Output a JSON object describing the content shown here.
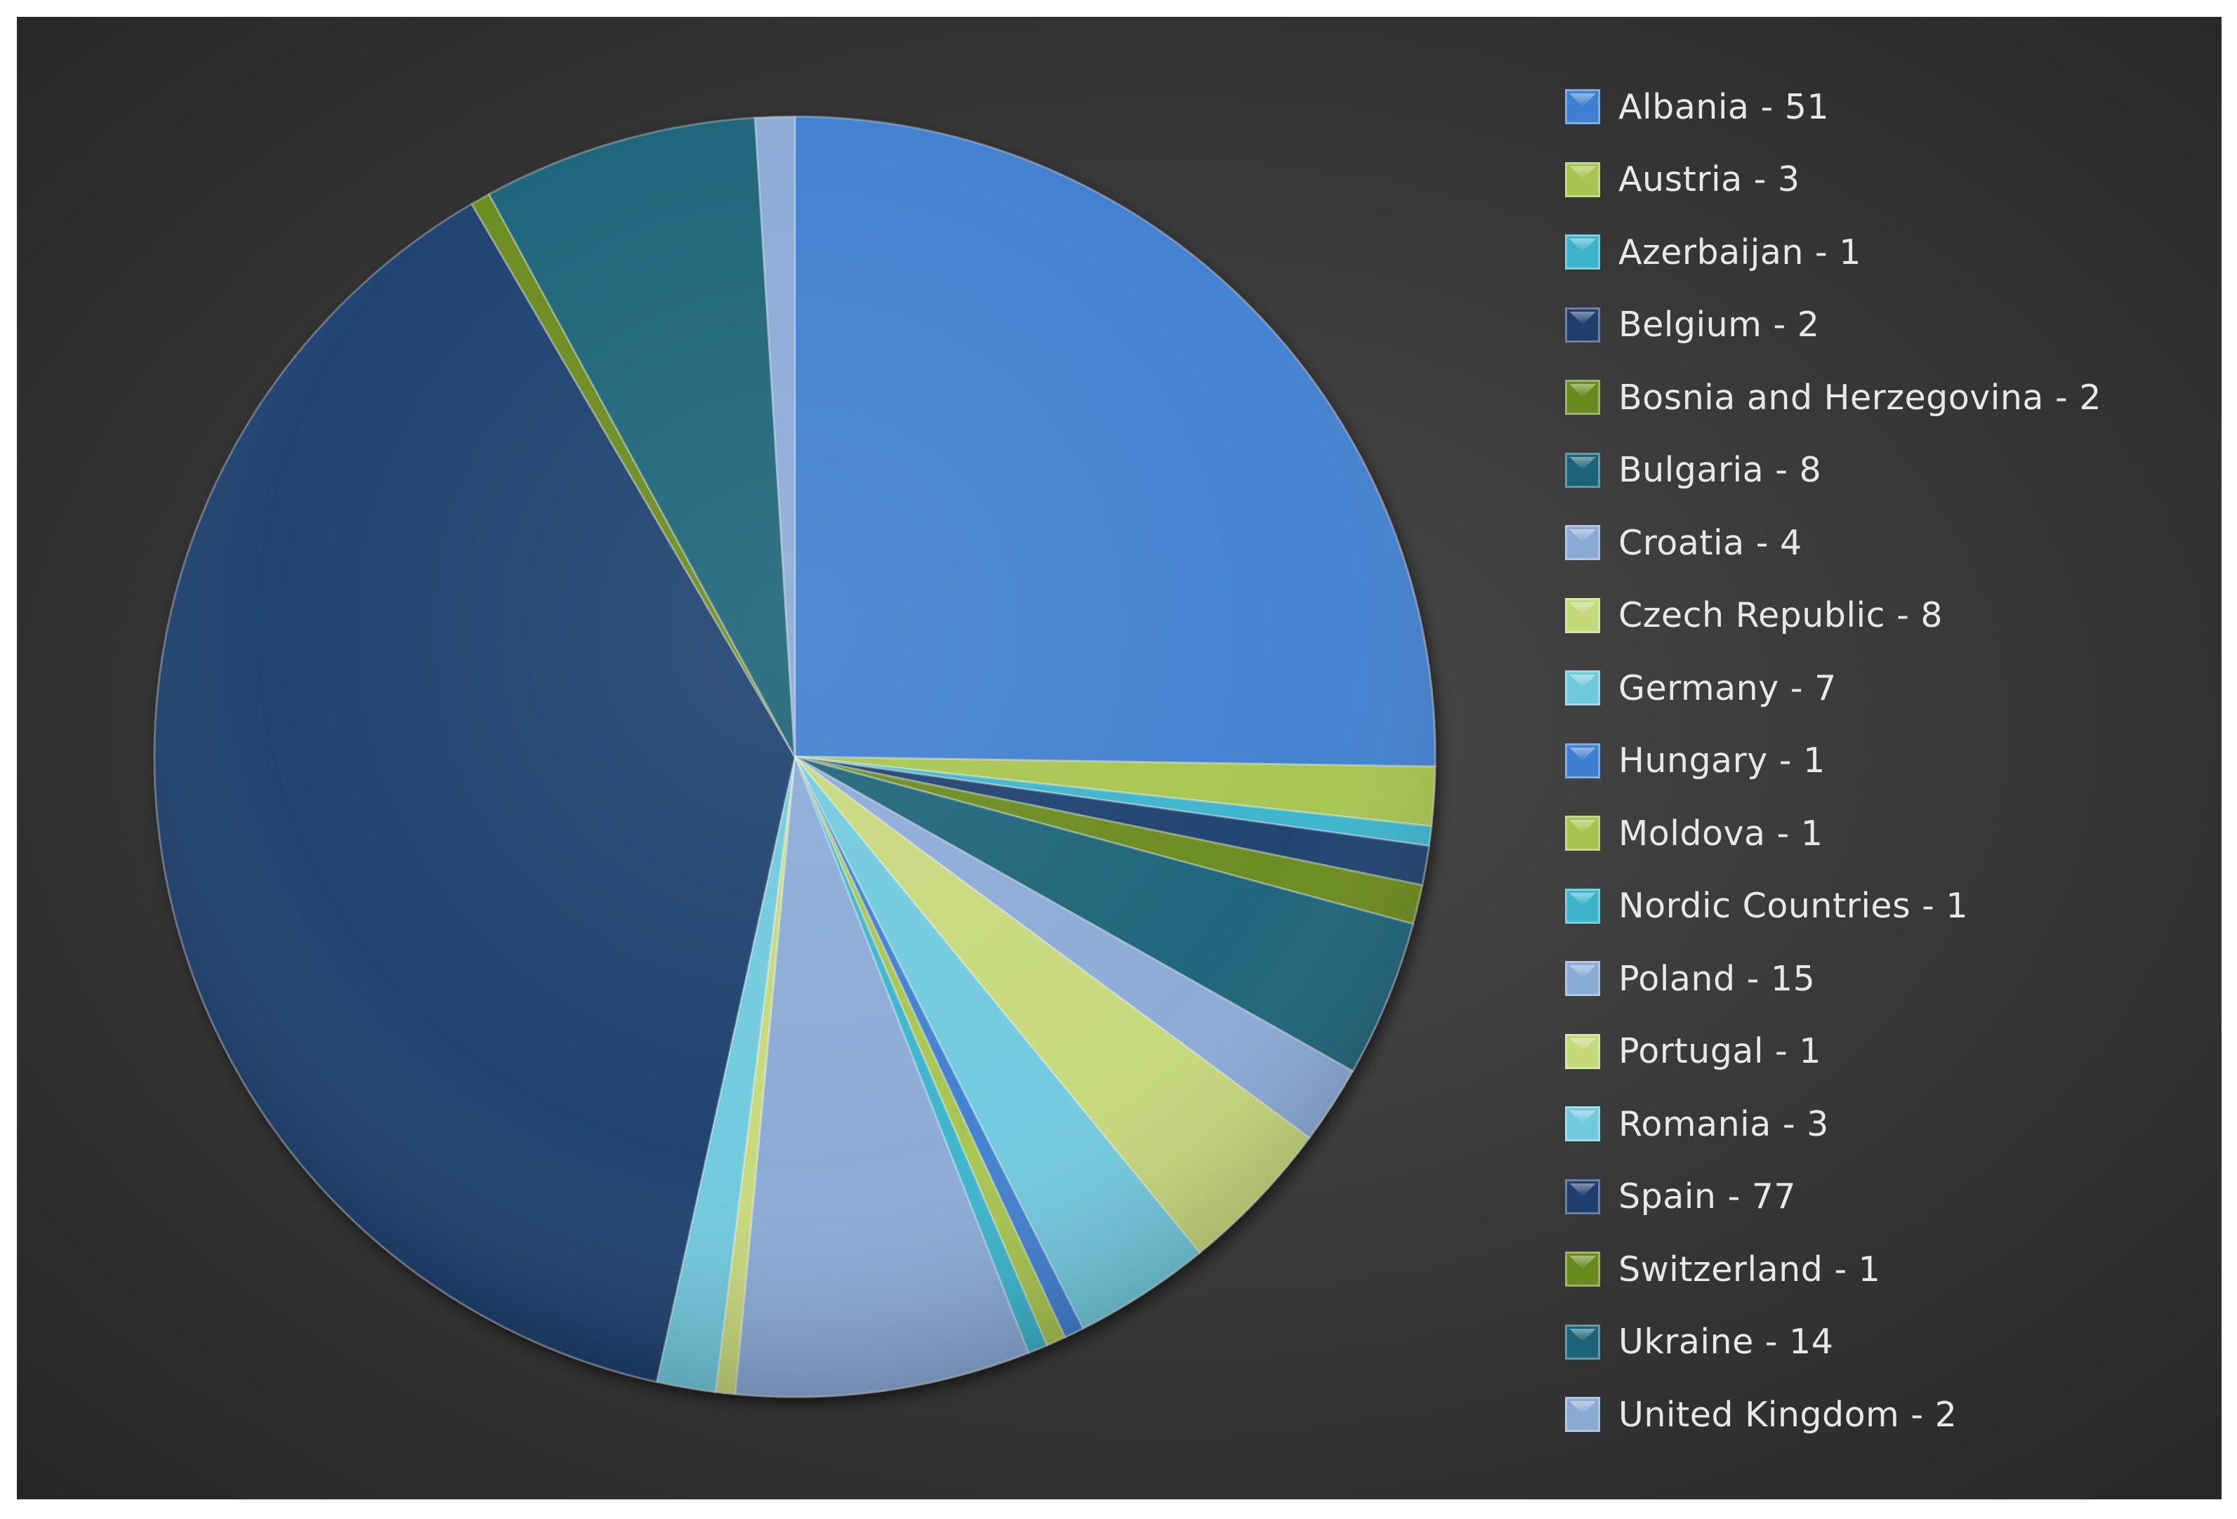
{
  "colors": {
    "blue": "#3f7fcf",
    "yellowgreen": "#a7c44e",
    "cyan": "#3bb4cc",
    "navy": "#1e3f6e",
    "olive": "#6b8a1e",
    "teal": "#1a6378",
    "lightblue": "#8aaad6",
    "lightgreen": "#c6d87a",
    "lightcyan": "#6fc9dd"
  },
  "chart_data": {
    "type": "pie",
    "title": "",
    "start_angle_deg": 0,
    "direction": "clockwise",
    "legend_position": "right",
    "slices": [
      {
        "category": "Albania",
        "value": 51,
        "label": "Albania - 51",
        "color": "#3f7fcf"
      },
      {
        "category": "Austria",
        "value": 3,
        "label": "Austria - 3",
        "color": "#a7c44e"
      },
      {
        "category": "Azerbaijan",
        "value": 1,
        "label": "Azerbaijan - 1",
        "color": "#3bb4cc"
      },
      {
        "category": "Belgium",
        "value": 2,
        "label": "Belgium - 2",
        "color": "#1e3f6e"
      },
      {
        "category": "Bosnia and Herzegovina",
        "value": 2,
        "label": "Bosnia and Herzegovina - 2",
        "color": "#6b8a1e"
      },
      {
        "category": "Bulgaria",
        "value": 8,
        "label": "Bulgaria - 8",
        "color": "#1a6378"
      },
      {
        "category": "Croatia",
        "value": 4,
        "label": "Croatia - 4",
        "color": "#8aaad6"
      },
      {
        "category": "Czech Republic",
        "value": 8,
        "label": "Czech Republic - 8",
        "color": "#c6d87a"
      },
      {
        "category": "Germany",
        "value": 7,
        "label": "Germany - 7",
        "color": "#6fc9dd"
      },
      {
        "category": "Hungary",
        "value": 1,
        "label": "Hungary - 1",
        "color": "#3f7fcf"
      },
      {
        "category": "Moldova",
        "value": 1,
        "label": "Moldova - 1",
        "color": "#a7c44e"
      },
      {
        "category": "Nordic Countries",
        "value": 1,
        "label": "Nordic Countries - 1",
        "color": "#3bb4cc"
      },
      {
        "category": "Poland",
        "value": 15,
        "label": "Poland - 15",
        "color": "#8aaad6"
      },
      {
        "category": "Portugal",
        "value": 1,
        "label": "Portugal - 1",
        "color": "#c6d87a"
      },
      {
        "category": "Romania",
        "value": 3,
        "label": "Romania - 3",
        "color": "#6fc9dd"
      },
      {
        "category": "Spain",
        "value": 77,
        "label": "Spain - 77",
        "color": "#1e3f6e"
      },
      {
        "category": "Switzerland",
        "value": 1,
        "label": "Switzerland - 1",
        "color": "#6b8a1e"
      },
      {
        "category": "Ukraine",
        "value": 14,
        "label": "Ukraine - 14",
        "color": "#1a6378"
      },
      {
        "category": "United Kingdom",
        "value": 2,
        "label": "United Kingdom - 2",
        "color": "#8aaad6"
      }
    ]
  }
}
